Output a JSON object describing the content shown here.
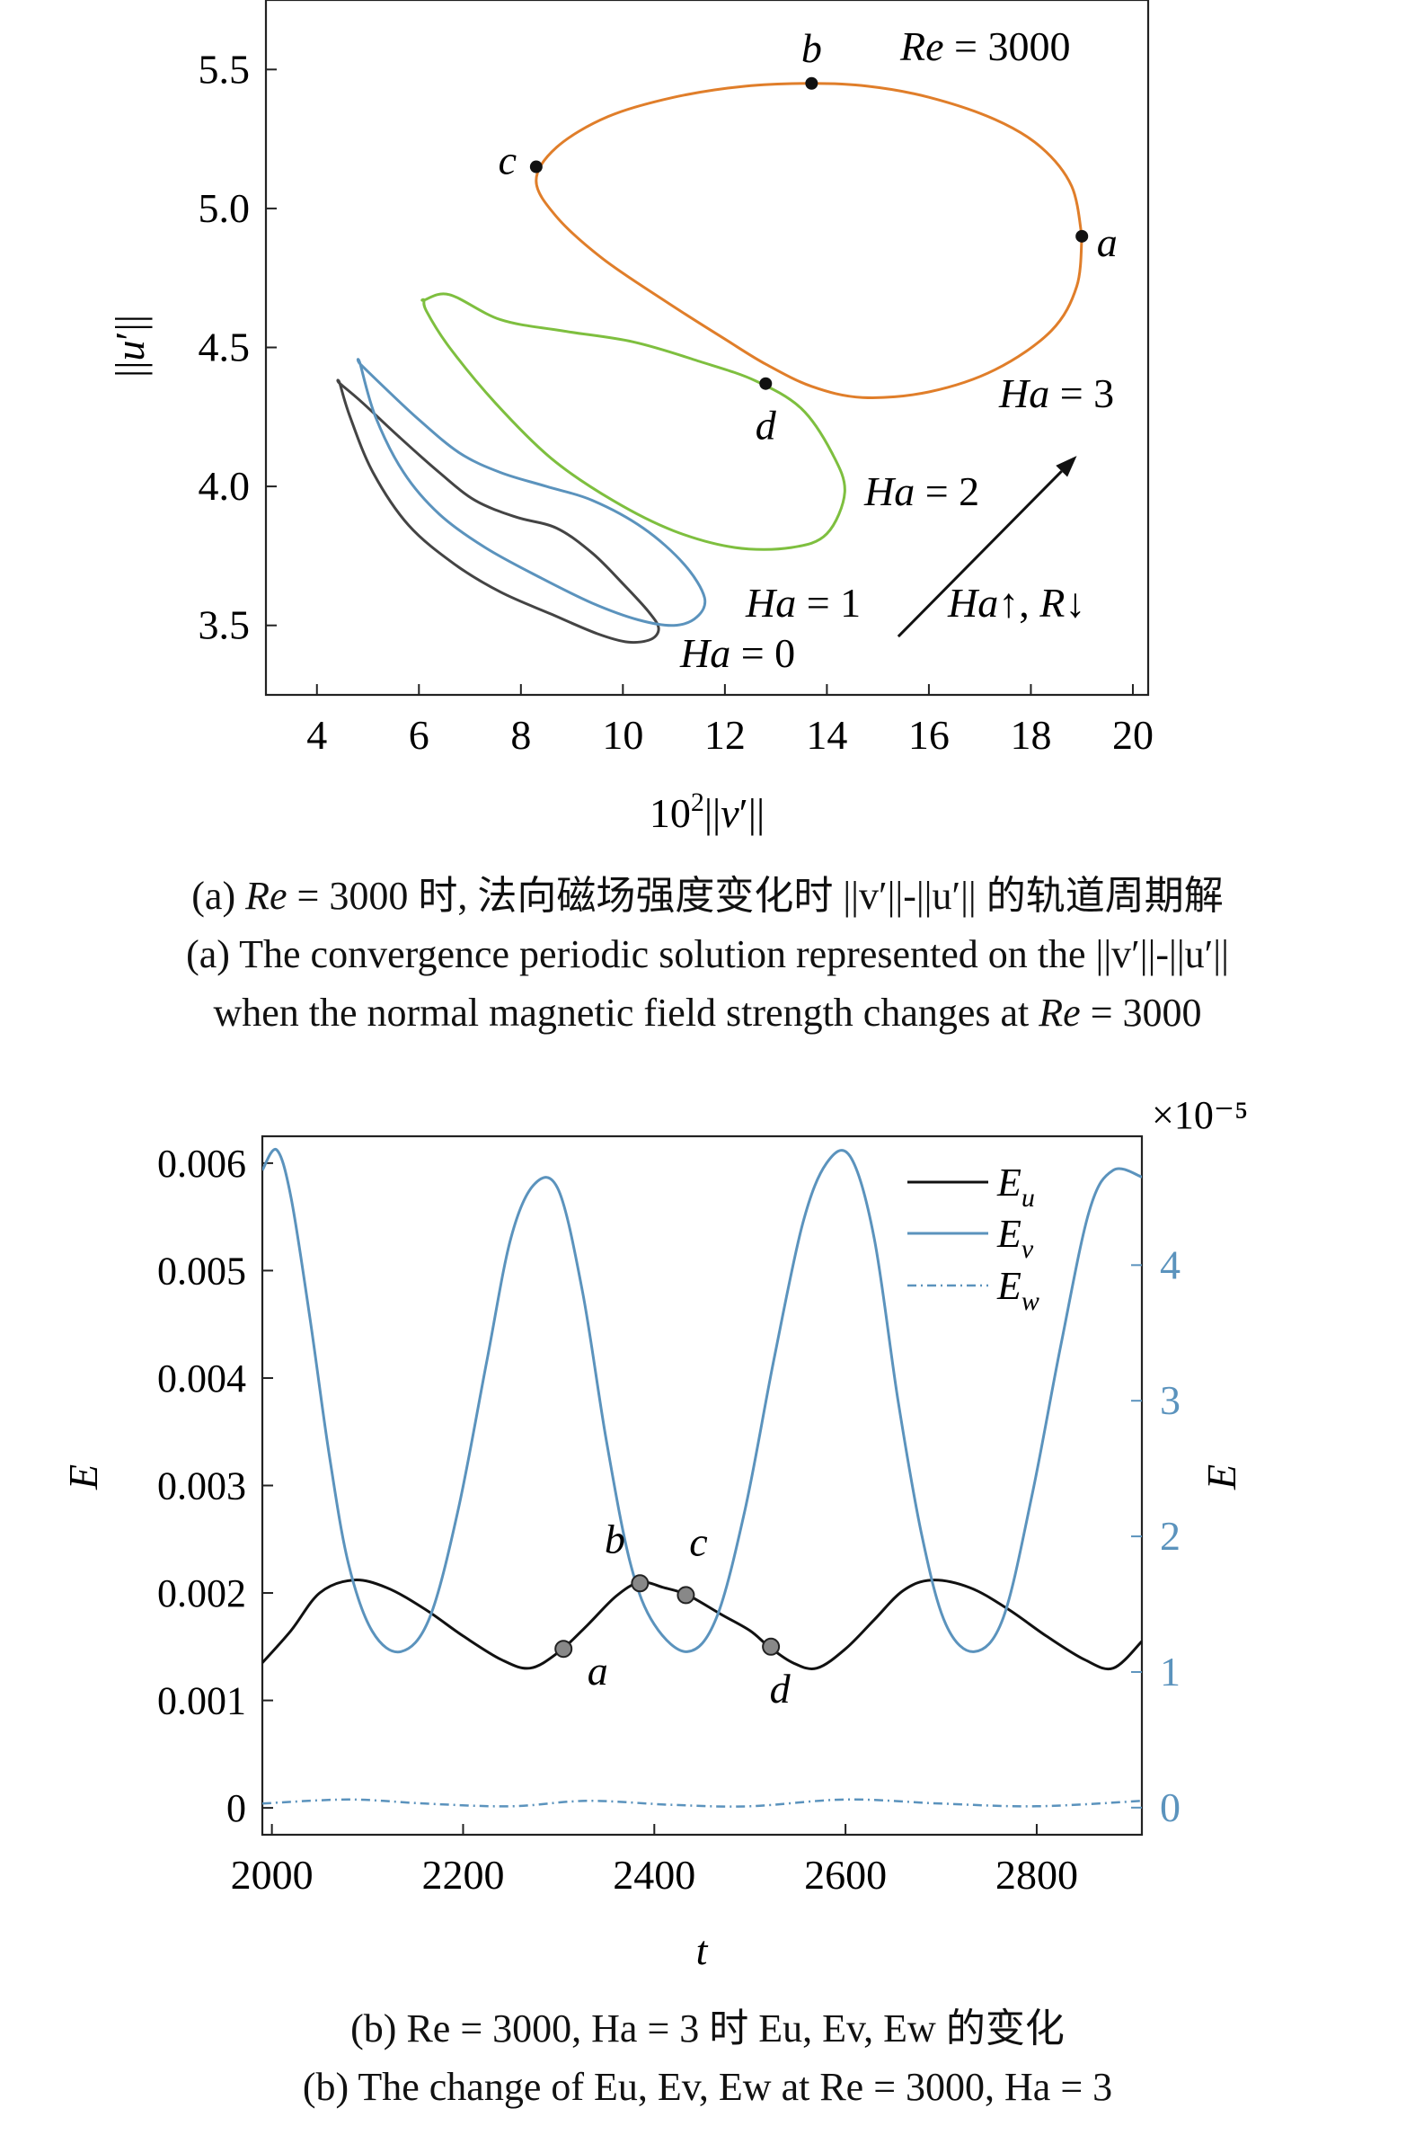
{
  "chart_data": [
    {
      "type": "line",
      "panel": "a",
      "xlabel": "10²||v′||",
      "ylabel": "||u′||",
      "xlim": [
        3,
        20.3
      ],
      "ylim": [
        3.25,
        5.75
      ],
      "xticks": [
        "4",
        "6",
        "8",
        "10",
        "12",
        "14",
        "16",
        "18",
        "20"
      ],
      "xtick_values": [
        4,
        6,
        8,
        10,
        12,
        14,
        16,
        18,
        20
      ],
      "yticks": [
        "3.5",
        "4.0",
        "4.5",
        "5.0",
        "5.5"
      ],
      "ytick_values": [
        3.5,
        4.0,
        4.5,
        5.0,
        5.5
      ],
      "grid": false,
      "legend": "none",
      "series": [
        {
          "name": "Ha = 0",
          "color": "#444444",
          "points": [
            [
              4.45,
              4.37
            ],
            [
              4.9,
              4.3
            ],
            [
              5.6,
              4.18
            ],
            [
              6.4,
              4.05
            ],
            [
              7.1,
              3.95
            ],
            [
              7.9,
              3.89
            ],
            [
              8.7,
              3.85
            ],
            [
              9.4,
              3.76
            ],
            [
              10.0,
              3.65
            ],
            [
              10.5,
              3.55
            ],
            [
              10.7,
              3.49
            ],
            [
              10.55,
              3.45
            ],
            [
              10.1,
              3.44
            ],
            [
              9.5,
              3.47
            ],
            [
              8.6,
              3.54
            ],
            [
              7.6,
              3.62
            ],
            [
              6.7,
              3.72
            ],
            [
              5.8,
              3.86
            ],
            [
              5.1,
              4.05
            ],
            [
              4.65,
              4.25
            ],
            [
              4.45,
              4.37
            ]
          ]
        },
        {
          "name": "Ha = 1",
          "color": "#5b93bd",
          "points": [
            [
              4.85,
              4.44
            ],
            [
              5.3,
              4.36
            ],
            [
              6.0,
              4.24
            ],
            [
              6.8,
              4.12
            ],
            [
              7.6,
              4.05
            ],
            [
              8.5,
              4.0
            ],
            [
              9.4,
              3.95
            ],
            [
              10.4,
              3.85
            ],
            [
              11.2,
              3.72
            ],
            [
              11.6,
              3.6
            ],
            [
              11.45,
              3.53
            ],
            [
              11.0,
              3.5
            ],
            [
              10.3,
              3.52
            ],
            [
              9.4,
              3.58
            ],
            [
              8.4,
              3.67
            ],
            [
              7.3,
              3.78
            ],
            [
              6.4,
              3.9
            ],
            [
              5.7,
              4.05
            ],
            [
              5.15,
              4.25
            ],
            [
              4.85,
              4.44
            ]
          ]
        },
        {
          "name": "Ha = 2",
          "color": "#7ebf3f",
          "points": [
            [
              6.1,
              4.67
            ],
            [
              6.6,
              4.69
            ],
            [
              7.6,
              4.6
            ],
            [
              8.8,
              4.56
            ],
            [
              10.2,
              4.52
            ],
            [
              11.5,
              4.45
            ],
            [
              12.6,
              4.38
            ],
            [
              13.5,
              4.28
            ],
            [
              14.1,
              4.12
            ],
            [
              14.35,
              3.98
            ],
            [
              14.0,
              3.83
            ],
            [
              13.3,
              3.78
            ],
            [
              12.2,
              3.78
            ],
            [
              11.0,
              3.84
            ],
            [
              9.8,
              3.95
            ],
            [
              8.6,
              4.1
            ],
            [
              7.5,
              4.3
            ],
            [
              6.6,
              4.5
            ],
            [
              6.15,
              4.63
            ],
            [
              6.1,
              4.67
            ]
          ]
        },
        {
          "name": "Ha = 3",
          "color": "#e07e2a",
          "points": [
            [
              19.0,
              4.9
            ],
            [
              18.8,
              5.08
            ],
            [
              18.2,
              5.22
            ],
            [
              17.3,
              5.32
            ],
            [
              16.0,
              5.4
            ],
            [
              14.8,
              5.44
            ],
            [
              13.7,
              5.45
            ],
            [
              12.4,
              5.44
            ],
            [
              11.0,
              5.4
            ],
            [
              9.7,
              5.33
            ],
            [
              8.7,
              5.22
            ],
            [
              8.3,
              5.1
            ],
            [
              8.7,
              4.97
            ],
            [
              9.6,
              4.82
            ],
            [
              10.8,
              4.67
            ],
            [
              12.0,
              4.53
            ],
            [
              12.8,
              4.44
            ],
            [
              13.7,
              4.36
            ],
            [
              14.7,
              4.32
            ],
            [
              16.0,
              4.34
            ],
            [
              17.3,
              4.42
            ],
            [
              18.4,
              4.56
            ],
            [
              18.9,
              4.72
            ],
            [
              19.0,
              4.9
            ]
          ]
        }
      ],
      "markers": [
        {
          "label": "a",
          "x": 19.0,
          "y": 4.9
        },
        {
          "label": "b",
          "x": 13.7,
          "y": 5.45
        },
        {
          "label": "c",
          "x": 8.3,
          "y": 5.15
        },
        {
          "label": "d",
          "x": 12.8,
          "y": 4.37
        }
      ],
      "annotations": {
        "re": "Re = 3000",
        "ha0": "Ha = 0",
        "ha1": "Ha = 1",
        "ha2": "Ha = 2",
        "ha3": "Ha = 3",
        "arrow": "Ha↑, R↓"
      },
      "arrow": {
        "from": [
          15.4,
          3.46
        ],
        "to": [
          18.9,
          4.11
        ],
        "color": "#111111"
      }
    },
    {
      "type": "line",
      "panel": "b",
      "xlabel": "t",
      "ylabel_left": "E",
      "ylabel_right": "E",
      "right_multiplier": "×10⁻⁵",
      "xlim": [
        1990,
        2910
      ],
      "ylim_left": [
        -0.00025,
        0.00625
      ],
      "ylim_right": [
        -0.2,
        4.95
      ],
      "xticks": [
        "2000",
        "2200",
        "2400",
        "2600",
        "2800"
      ],
      "xtick_values": [
        2000,
        2200,
        2400,
        2600,
        2800
      ],
      "yticks_left": [
        "0",
        "0.001",
        "0.002",
        "0.003",
        "0.004",
        "0.005",
        "0.006"
      ],
      "ytick_values_left": [
        0,
        0.001,
        0.002,
        0.003,
        0.004,
        0.005,
        0.006
      ],
      "yticks_right": [
        "0",
        "1",
        "2",
        "3",
        "4"
      ],
      "ytick_values_right": [
        0,
        1,
        2,
        3,
        4
      ],
      "grid": false,
      "legend": "top-right",
      "series": [
        {
          "name": "E_u",
          "axis": "left",
          "color": "#111111",
          "points": [
            [
              1990,
              0.00135
            ],
            [
              2020,
              0.00165
            ],
            [
              2050,
              0.002
            ],
            [
              2085,
              0.00212
            ],
            [
              2120,
              0.00205
            ],
            [
              2160,
              0.00185
            ],
            [
              2200,
              0.0016
            ],
            [
              2240,
              0.00138
            ],
            [
              2270,
              0.0013
            ],
            [
              2300,
              0.00145
            ],
            [
              2330,
              0.0017
            ],
            [
              2360,
              0.00197
            ],
            [
              2385,
              0.0021
            ],
            [
              2410,
              0.00205
            ],
            [
              2435,
              0.00198
            ],
            [
              2470,
              0.0018
            ],
            [
              2500,
              0.00165
            ],
            [
              2520,
              0.0015
            ],
            [
              2545,
              0.00135
            ],
            [
              2570,
              0.0013
            ],
            [
              2600,
              0.00148
            ],
            [
              2630,
              0.00175
            ],
            [
              2660,
              0.00202
            ],
            [
              2690,
              0.00212
            ],
            [
              2730,
              0.00205
            ],
            [
              2770,
              0.00185
            ],
            [
              2810,
              0.0016
            ],
            [
              2850,
              0.00138
            ],
            [
              2880,
              0.0013
            ],
            [
              2910,
              0.00155
            ]
          ]
        },
        {
          "name": "E_v",
          "axis": "right",
          "color": "#5b93bd",
          "points": [
            [
              1990,
              4.7
            ],
            [
              2005,
              4.85
            ],
            [
              2020,
              4.5
            ],
            [
              2040,
              3.6
            ],
            [
              2060,
              2.6
            ],
            [
              2080,
              1.8
            ],
            [
              2105,
              1.3
            ],
            [
              2135,
              1.15
            ],
            [
              2165,
              1.4
            ],
            [
              2195,
              2.2
            ],
            [
              2225,
              3.3
            ],
            [
              2250,
              4.2
            ],
            [
              2275,
              4.6
            ],
            [
              2300,
              4.55
            ],
            [
              2325,
              3.8
            ],
            [
              2350,
              2.7
            ],
            [
              2375,
              1.8
            ],
            [
              2400,
              1.35
            ],
            [
              2435,
              1.15
            ],
            [
              2465,
              1.4
            ],
            [
              2495,
              2.2
            ],
            [
              2525,
              3.3
            ],
            [
              2555,
              4.3
            ],
            [
              2580,
              4.75
            ],
            [
              2605,
              4.8
            ],
            [
              2630,
              4.2
            ],
            [
              2655,
              3.0
            ],
            [
              2680,
              2.0
            ],
            [
              2705,
              1.35
            ],
            [
              2735,
              1.15
            ],
            [
              2765,
              1.4
            ],
            [
              2795,
              2.3
            ],
            [
              2825,
              3.4
            ],
            [
              2855,
              4.4
            ],
            [
              2880,
              4.7
            ],
            [
              2910,
              4.65
            ]
          ]
        },
        {
          "name": "E_w",
          "axis": "right",
          "color": "#5b93bd",
          "dashed": true,
          "points": [
            [
              1990,
              0.03
            ],
            [
              2080,
              0.06
            ],
            [
              2160,
              0.03
            ],
            [
              2250,
              0.01
            ],
            [
              2330,
              0.05
            ],
            [
              2420,
              0.02
            ],
            [
              2500,
              0.01
            ],
            [
              2600,
              0.06
            ],
            [
              2700,
              0.03
            ],
            [
              2800,
              0.01
            ],
            [
              2910,
              0.05
            ]
          ]
        }
      ],
      "markers": [
        {
          "label": "a",
          "x": 2305,
          "y": 0.00148
        },
        {
          "label": "b",
          "x": 2385,
          "y": 0.00209
        },
        {
          "label": "c",
          "x": 2433,
          "y": 0.00198
        },
        {
          "label": "d",
          "x": 2522,
          "y": 0.0015
        }
      ],
      "legend_labels": [
        "E",
        "E",
        "E"
      ],
      "legend_subscripts": [
        "u",
        "v",
        "w"
      ]
    }
  ],
  "captions": {
    "a_zh_prefix": "(a) ",
    "a_zh_re": "Re",
    "a_zh_rest": " = 3000 时, 法向磁场强度变化时 ||v′||-||u′|| 的轨道周期解",
    "a_en_1": "(a) The convergence periodic solution represented on the ||v′||-||u′||",
    "a_en_2_pre": "when the normal magnetic field strength changes at ",
    "a_en_2_re": "Re",
    "a_en_2_post": " = 3000",
    "b_zh": "(b) Re = 3000, Ha = 3 时 Eu, Ev, Ew 的变化",
    "b_en": "(b) The change of Eu, Ev, Ew at Re = 3000, Ha = 3"
  }
}
